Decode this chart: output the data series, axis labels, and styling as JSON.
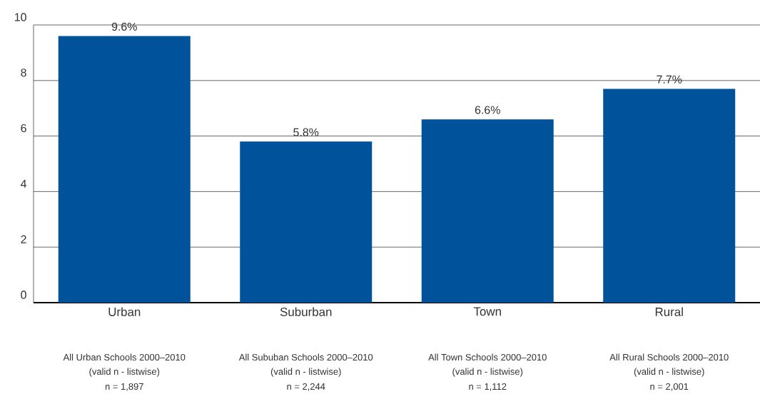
{
  "chart_data": {
    "type": "bar",
    "categories": [
      "Urban",
      "Suburban",
      "Town",
      "Rural"
    ],
    "values": [
      9.6,
      5.8,
      6.6,
      7.7
    ],
    "value_labels": [
      "9.6%",
      "5.8%",
      "6.6%",
      "7.7%"
    ],
    "color": "#00539b",
    "ylim": [
      0,
      10
    ],
    "yticks": [
      0,
      2,
      4,
      6,
      8,
      10
    ],
    "grid": "y",
    "annotations": [
      "All Urban Schools 2000–2010",
      "(valid n - listwise)",
      "n = 1,897",
      "All Sububan Schools 2000–2010",
      "(valid n - listwise)",
      "n = 2,244",
      "All Town Schools 2000–2010",
      "(valid n - listwise)",
      "n = 1,112",
      "All Rural Schools 2000–2010",
      "(valid n - listwise)",
      "n = 2,001"
    ]
  }
}
